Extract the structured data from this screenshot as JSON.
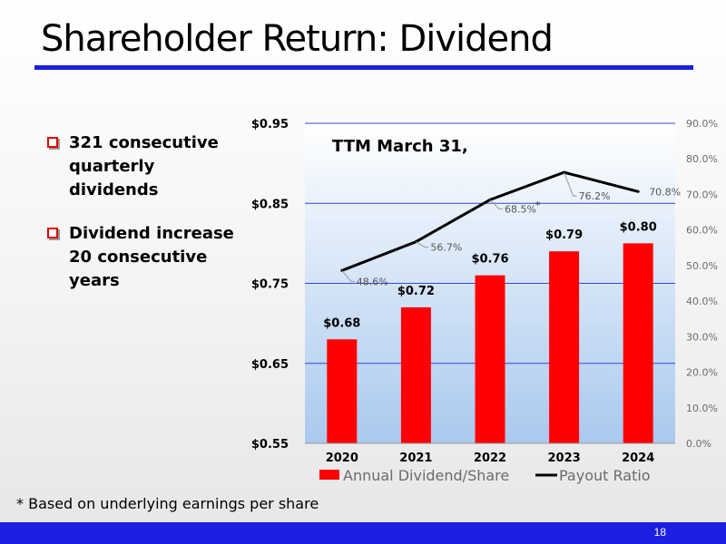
{
  "slide": {
    "title": "Shareholder Return: Dividend",
    "bullets": [
      "321 consecutive quarterly dividends",
      "Dividend increase 20 consecutive years"
    ],
    "footnote": "* Based on underlying earnings per share",
    "page_number": "18"
  },
  "colors": {
    "accent_blue": "#1b1fe0",
    "bar_red": "#ff0000",
    "line_black": "#000000"
  },
  "chart_data": {
    "type": "bar",
    "title": "TTM March 31,",
    "categories": [
      "2020",
      "2021",
      "2022",
      "2023",
      "2024"
    ],
    "series": [
      {
        "name": "Annual Dividend/Share",
        "type": "bar",
        "axis": "left",
        "values": [
          0.68,
          0.72,
          0.76,
          0.79,
          0.8
        ],
        "labels": [
          "$0.68",
          "$0.72",
          "$0.76",
          "$0.79",
          "$0.80"
        ]
      },
      {
        "name": "Payout Ratio",
        "type": "line",
        "axis": "right",
        "values": [
          48.6,
          56.7,
          68.5,
          76.2,
          70.8
        ],
        "labels": [
          "48.6%",
          "56.7%",
          "68.5%",
          "76.2%",
          "70.8%"
        ]
      }
    ],
    "y_left": {
      "min": 0.55,
      "max": 0.95,
      "ticks": [
        0.55,
        0.65,
        0.75,
        0.85,
        0.95
      ],
      "tick_labels": [
        "$0.55",
        "$0.65",
        "$0.75",
        "$0.85",
        "$0.95"
      ]
    },
    "y_right": {
      "min": 0,
      "max": 90,
      "ticks": [
        0,
        10,
        20,
        30,
        40,
        50,
        60,
        70,
        80,
        90
      ],
      "tick_labels": [
        "0.0%",
        "10.0%",
        "20.0%",
        "30.0%",
        "40.0%",
        "50.0%",
        "60.0%",
        "70.0%",
        "80.0%",
        "90.0%"
      ]
    },
    "annotation": "*",
    "legend": "bottom",
    "grid": true
  }
}
